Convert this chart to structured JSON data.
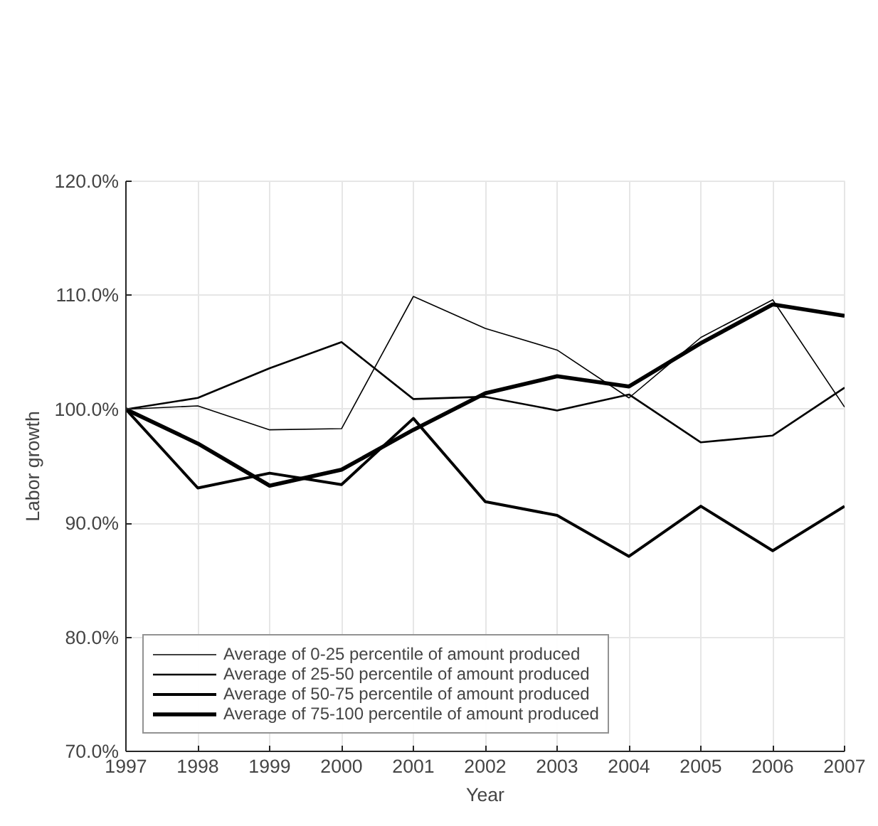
{
  "chart_data": {
    "type": "line",
    "xlabel": "Year",
    "ylabel": "Labor growth",
    "x": [
      1997,
      1998,
      1999,
      2000,
      2001,
      2002,
      2003,
      2004,
      2005,
      2006,
      2007
    ],
    "series": [
      {
        "name": "Average of 0-25 percentile of amount produced",
        "color": "#000000",
        "values": [
          100,
          100.3,
          98.2,
          98.3,
          109.9,
          107.1,
          105.2,
          101.0,
          106.3,
          109.6,
          100.2
        ]
      },
      {
        "name": "Average of 25-50 percentile of amount produced",
        "color": "#000000",
        "values": [
          100,
          101.0,
          103.6,
          105.9,
          100.9,
          101.1,
          99.9,
          101.3,
          97.1,
          97.7,
          101.9
        ]
      },
      {
        "name": "Average of 50-75 percentile of amount produced",
        "color": "#000000",
        "values": [
          100,
          93.1,
          94.4,
          93.4,
          99.2,
          91.9,
          90.7,
          87.1,
          91.5,
          87.6,
          91.5
        ]
      },
      {
        "name": "Average of 75-100 percentile of amount produced",
        "color": "#000000",
        "values": [
          100,
          97.0,
          93.3,
          94.7,
          98.2,
          101.4,
          102.9,
          102.0,
          105.8,
          109.2,
          108.2
        ]
      }
    ],
    "xlim": [
      1997,
      2007
    ],
    "xticks": [
      1997,
      1998,
      1999,
      2000,
      2001,
      2002,
      2003,
      2004,
      2005,
      2006,
      2007
    ],
    "ylim": [
      70,
      120
    ],
    "yticks": [
      {
        "value": 70,
        "label": "70.0%"
      },
      {
        "value": 80,
        "label": "80.0%"
      },
      {
        "value": 90,
        "label": "90.0%"
      },
      {
        "value": 100,
        "label": "100.0%"
      },
      {
        "value": 110,
        "label": "110.0%"
      },
      {
        "value": 120,
        "label": "120.0%"
      }
    ],
    "grid": true,
    "legend": "bottom left",
    "line_style": "solid",
    "marker": "none"
  }
}
